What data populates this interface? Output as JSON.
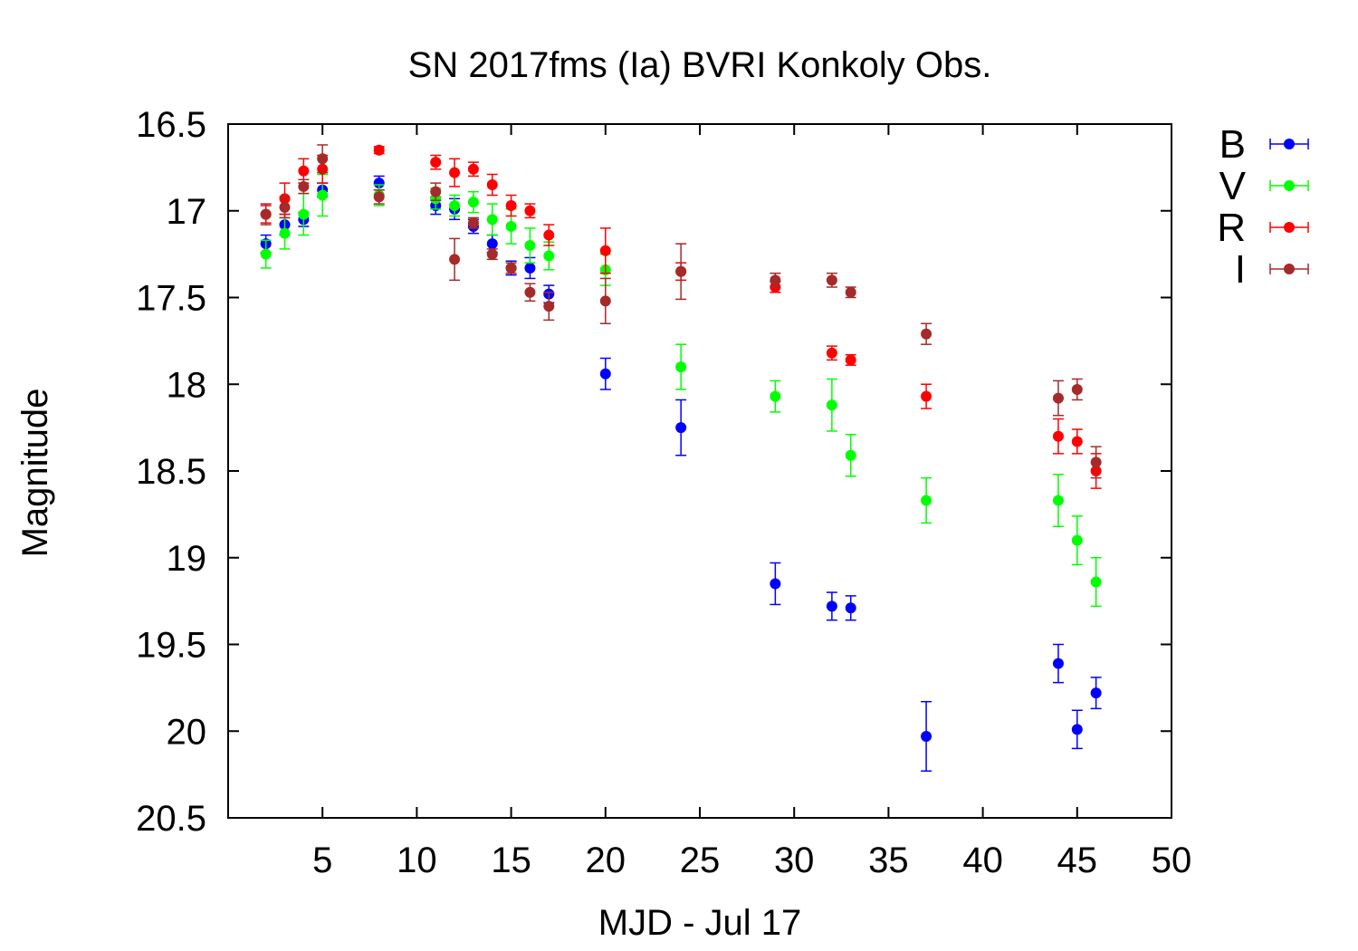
{
  "chart_data": {
    "type": "scatter",
    "title": "SN 2017fms (Ia) BVRI Konkoly Obs.",
    "xlabel": "MJD - Jul 17",
    "ylabel": "Magnitude",
    "xlim": [
      0,
      50
    ],
    "ylim": [
      16.5,
      20.5
    ],
    "y_inverted": true,
    "grid": false,
    "error_bars": true,
    "legend_position": "right-top, outside plot",
    "x_ticks": [
      5,
      10,
      15,
      20,
      25,
      30,
      35,
      40,
      45,
      50
    ],
    "y_ticks": [
      16.5,
      17,
      17.5,
      18,
      18.5,
      19,
      19.5,
      20,
      20.5
    ],
    "x_tick_labels": [
      "5",
      "10",
      "15",
      "20",
      "25",
      "30",
      "35",
      "40",
      "45",
      "50"
    ],
    "y_tick_labels": [
      "16.5",
      "17",
      "17.5",
      "18",
      "18.5",
      "19",
      "19.5",
      "20",
      "20.5"
    ],
    "series": [
      {
        "name": "B",
        "color": "#0000ff",
        "points": [
          {
            "x": 2,
            "y": 17.19,
            "err": 0.05
          },
          {
            "x": 3,
            "y": 17.08,
            "err": 0.06
          },
          {
            "x": 4,
            "y": 17.05,
            "err": 0.04
          },
          {
            "x": 5,
            "y": 16.88,
            "err": 0.04
          },
          {
            "x": 8,
            "y": 16.84,
            "err": 0.04
          },
          {
            "x": 11,
            "y": 16.97,
            "err": 0.05
          },
          {
            "x": 12,
            "y": 16.99,
            "err": 0.06
          },
          {
            "x": 13,
            "y": 17.09,
            "err": 0.04
          },
          {
            "x": 14,
            "y": 17.19,
            "err": 0.05
          },
          {
            "x": 15,
            "y": 17.33,
            "err": 0.04
          },
          {
            "x": 16,
            "y": 17.33,
            "err": 0.06
          },
          {
            "x": 17,
            "y": 17.48,
            "err": 0.05
          },
          {
            "x": 20,
            "y": 17.94,
            "err": 0.09
          },
          {
            "x": 24,
            "y": 18.25,
            "err": 0.16
          },
          {
            "x": 29,
            "y": 19.15,
            "err": 0.12
          },
          {
            "x": 32,
            "y": 19.28,
            "err": 0.08
          },
          {
            "x": 33,
            "y": 19.29,
            "err": 0.07
          },
          {
            "x": 37,
            "y": 20.03,
            "err": 0.2
          },
          {
            "x": 44,
            "y": 19.61,
            "err": 0.11
          },
          {
            "x": 45,
            "y": 19.99,
            "err": 0.11
          },
          {
            "x": 46,
            "y": 19.78,
            "err": 0.09
          }
        ]
      },
      {
        "name": "V",
        "color": "#00ff00",
        "points": [
          {
            "x": 2,
            "y": 17.25,
            "err": 0.08
          },
          {
            "x": 3,
            "y": 17.13,
            "err": 0.09
          },
          {
            "x": 4,
            "y": 17.02,
            "err": 0.12
          },
          {
            "x": 5,
            "y": 16.91,
            "err": 0.12
          },
          {
            "x": 8,
            "y": 16.91,
            "err": 0.06
          },
          {
            "x": 11,
            "y": 16.93,
            "err": 0.06
          },
          {
            "x": 12,
            "y": 16.97,
            "err": 0.06
          },
          {
            "x": 13,
            "y": 16.95,
            "err": 0.06
          },
          {
            "x": 14,
            "y": 17.05,
            "err": 0.09
          },
          {
            "x": 15,
            "y": 17.09,
            "err": 0.1
          },
          {
            "x": 16,
            "y": 17.2,
            "err": 0.1
          },
          {
            "x": 17,
            "y": 17.26,
            "err": 0.08
          },
          {
            "x": 20,
            "y": 17.34,
            "err": 0.09
          },
          {
            "x": 24,
            "y": 17.9,
            "err": 0.13
          },
          {
            "x": 29,
            "y": 18.07,
            "err": 0.09
          },
          {
            "x": 32,
            "y": 18.12,
            "err": 0.15
          },
          {
            "x": 33,
            "y": 18.41,
            "err": 0.12
          },
          {
            "x": 37,
            "y": 18.67,
            "err": 0.13
          },
          {
            "x": 44,
            "y": 18.67,
            "err": 0.15
          },
          {
            "x": 45,
            "y": 18.9,
            "err": 0.14
          },
          {
            "x": 46,
            "y": 19.14,
            "err": 0.14
          }
        ]
      },
      {
        "name": "R",
        "color": "#ff0000",
        "points": [
          {
            "x": 2,
            "y": 17.02,
            "err": 0.05
          },
          {
            "x": 3,
            "y": 16.93,
            "err": 0.09
          },
          {
            "x": 4,
            "y": 16.77,
            "err": 0.07
          },
          {
            "x": 5,
            "y": 16.76,
            "err": 0.08
          },
          {
            "x": 8,
            "y": 16.65,
            "err": 0.02
          },
          {
            "x": 11,
            "y": 16.72,
            "err": 0.04
          },
          {
            "x": 12,
            "y": 16.78,
            "err": 0.08
          },
          {
            "x": 13,
            "y": 16.76,
            "err": 0.04
          },
          {
            "x": 14,
            "y": 16.85,
            "err": 0.06
          },
          {
            "x": 15,
            "y": 16.97,
            "err": 0.06
          },
          {
            "x": 16,
            "y": 17.0,
            "err": 0.04
          },
          {
            "x": 17,
            "y": 17.14,
            "err": 0.06
          },
          {
            "x": 20,
            "y": 17.23,
            "err": 0.13
          },
          {
            "x": 24,
            "y": 17.35,
            "err": 0.05
          },
          {
            "x": 29,
            "y": 17.44,
            "err": 0.03
          },
          {
            "x": 32,
            "y": 17.82,
            "err": 0.04
          },
          {
            "x": 33,
            "y": 17.86,
            "err": 0.03
          },
          {
            "x": 37,
            "y": 18.07,
            "err": 0.07
          },
          {
            "x": 44,
            "y": 18.3,
            "err": 0.1
          },
          {
            "x": 45,
            "y": 18.33,
            "err": 0.07
          },
          {
            "x": 46,
            "y": 18.5,
            "err": 0.1
          }
        ]
      },
      {
        "name": "I",
        "color": "#a52a2a",
        "points": [
          {
            "x": 2,
            "y": 17.02,
            "err": 0.06
          },
          {
            "x": 3,
            "y": 16.98,
            "err": 0.06
          },
          {
            "x": 4,
            "y": 16.86,
            "err": 0.04
          },
          {
            "x": 5,
            "y": 16.7,
            "err": 0.08
          },
          {
            "x": 8,
            "y": 16.92,
            "err": 0.04
          },
          {
            "x": 11,
            "y": 16.89,
            "err": 0.05
          },
          {
            "x": 12,
            "y": 17.28,
            "err": 0.12
          },
          {
            "x": 13,
            "y": 17.07,
            "err": 0.03
          },
          {
            "x": 14,
            "y": 17.25,
            "err": 0.03
          },
          {
            "x": 15,
            "y": 17.33,
            "err": 0.03
          },
          {
            "x": 16,
            "y": 17.47,
            "err": 0.05
          },
          {
            "x": 17,
            "y": 17.55,
            "err": 0.08
          },
          {
            "x": 20,
            "y": 17.52,
            "err": 0.13
          },
          {
            "x": 24,
            "y": 17.35,
            "err": 0.16
          },
          {
            "x": 29,
            "y": 17.4,
            "err": 0.04
          },
          {
            "x": 32,
            "y": 17.4,
            "err": 0.04
          },
          {
            "x": 33,
            "y": 17.47,
            "err": 0.03
          },
          {
            "x": 37,
            "y": 17.71,
            "err": 0.06
          },
          {
            "x": 44,
            "y": 18.08,
            "err": 0.1
          },
          {
            "x": 45,
            "y": 18.03,
            "err": 0.06
          },
          {
            "x": 46,
            "y": 18.45,
            "err": 0.09
          }
        ]
      }
    ]
  }
}
